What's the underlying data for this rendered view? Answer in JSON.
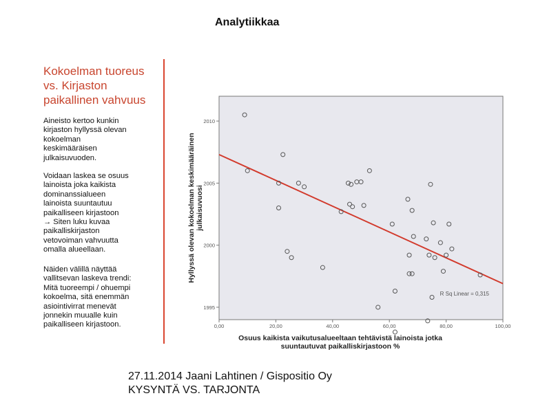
{
  "slide": {
    "title": "Analytiikkaa"
  },
  "sidebar": {
    "heading": [
      "Kokoelman tuoreus",
      "vs. Kirjaston",
      "paikallinen vahvuus"
    ],
    "paragraph1": [
      "Aineisto kertoo kunkin",
      "kirjaston hyllyssä olevan",
      "kokoelman",
      "keskimääräisen",
      "julkaisuvuoden."
    ],
    "paragraph2": [
      "Voidaan laskea se osuus",
      "lainoista joka kaikista",
      "dominanssialueen",
      "lainoista suuntautuu",
      "paikalliseen kirjastoon",
      "→ Siten luku kuvaa",
      "paikalliskirjaston",
      "vetovoiman vahvuutta",
      "omalla alueellaan."
    ],
    "paragraph3": [
      "Näiden välillä näyttää",
      "vallitsevan laskeva trendi:",
      "Mitä tuoreempi / ohuempi",
      "kokoelma, sitä enemmän",
      "asiointivirrat menevät",
      "jonnekin muualle kuin",
      "paikalliseen kirjastoon."
    ]
  },
  "footer": {
    "line1": "27.11.2014 Jaani Lahtinen / Gispositio Oy",
    "line2": "KYSYNTÄ VS. TARJONTA"
  },
  "colors": {
    "accent": "#d9452f",
    "plot_bg": "#e8e8ee",
    "marker": "#555555"
  },
  "chart_data": {
    "type": "scatter",
    "xlabel": [
      "Osuus kaikista vaikutusalueeltaan tehtävistä lainoista jotka",
      "suuntautuvat paikalliskirjastoon %"
    ],
    "ylabel": [
      "Hyllyssä olevan kokoelman keskimääräinen",
      "julkaisuvuosi"
    ],
    "xlim": [
      0,
      100
    ],
    "ylim": [
      1994,
      2012
    ],
    "xticks": [
      0,
      20,
      40,
      60,
      80,
      100
    ],
    "xtick_labels": [
      "0,00",
      "20,00",
      "40,00",
      "60,00",
      "80,00",
      "100,00"
    ],
    "yticks": [
      1995,
      2000,
      2005,
      2010
    ],
    "ytick_labels": [
      "1995",
      "2000",
      "2005",
      "2010"
    ],
    "grid": false,
    "points": [
      {
        "x": 9,
        "y": 2010.5
      },
      {
        "x": 10,
        "y": 2006
      },
      {
        "x": 21,
        "y": 2005
      },
      {
        "x": 21,
        "y": 2003
      },
      {
        "x": 22.5,
        "y": 2007.3
      },
      {
        "x": 24,
        "y": 1999.5
      },
      {
        "x": 25.5,
        "y": 1999
      },
      {
        "x": 28,
        "y": 2005
      },
      {
        "x": 30,
        "y": 2004.7
      },
      {
        "x": 36.5,
        "y": 1998.2
      },
      {
        "x": 43,
        "y": 2002.7
      },
      {
        "x": 45.5,
        "y": 2005
      },
      {
        "x": 46,
        "y": 2003.3
      },
      {
        "x": 46.5,
        "y": 2004.9
      },
      {
        "x": 47,
        "y": 2003.1
      },
      {
        "x": 48.5,
        "y": 2005.1
      },
      {
        "x": 50,
        "y": 2005.1
      },
      {
        "x": 51,
        "y": 2003.2
      },
      {
        "x": 53,
        "y": 2006
      },
      {
        "x": 56,
        "y": 1995
      },
      {
        "x": 61,
        "y": 2001.7
      },
      {
        "x": 62,
        "y": 1996.3
      },
      {
        "x": 62,
        "y": 1993
      },
      {
        "x": 66.5,
        "y": 2003.7
      },
      {
        "x": 67,
        "y": 1999.2
      },
      {
        "x": 67,
        "y": 1997.7
      },
      {
        "x": 68,
        "y": 2002.8
      },
      {
        "x": 68,
        "y": 1997.7
      },
      {
        "x": 68.5,
        "y": 2000.7
      },
      {
        "x": 73,
        "y": 2000.5
      },
      {
        "x": 73.5,
        "y": 1993.9
      },
      {
        "x": 74,
        "y": 1999.2
      },
      {
        "x": 74.5,
        "y": 2004.9
      },
      {
        "x": 75,
        "y": 1995.8
      },
      {
        "x": 75.5,
        "y": 2001.8
      },
      {
        "x": 76,
        "y": 1999
      },
      {
        "x": 78,
        "y": 2000.2
      },
      {
        "x": 79,
        "y": 1997.9
      },
      {
        "x": 80,
        "y": 1999.2
      },
      {
        "x": 81,
        "y": 2001.7
      },
      {
        "x": 82,
        "y": 1999.7
      },
      {
        "x": 92,
        "y": 1997.6
      }
    ],
    "fit_line": {
      "x1": 0,
      "y1": 2007.3,
      "x2": 100,
      "y2": 1996.9
    },
    "fit_label": "R Sq Linear = 0,315"
  }
}
